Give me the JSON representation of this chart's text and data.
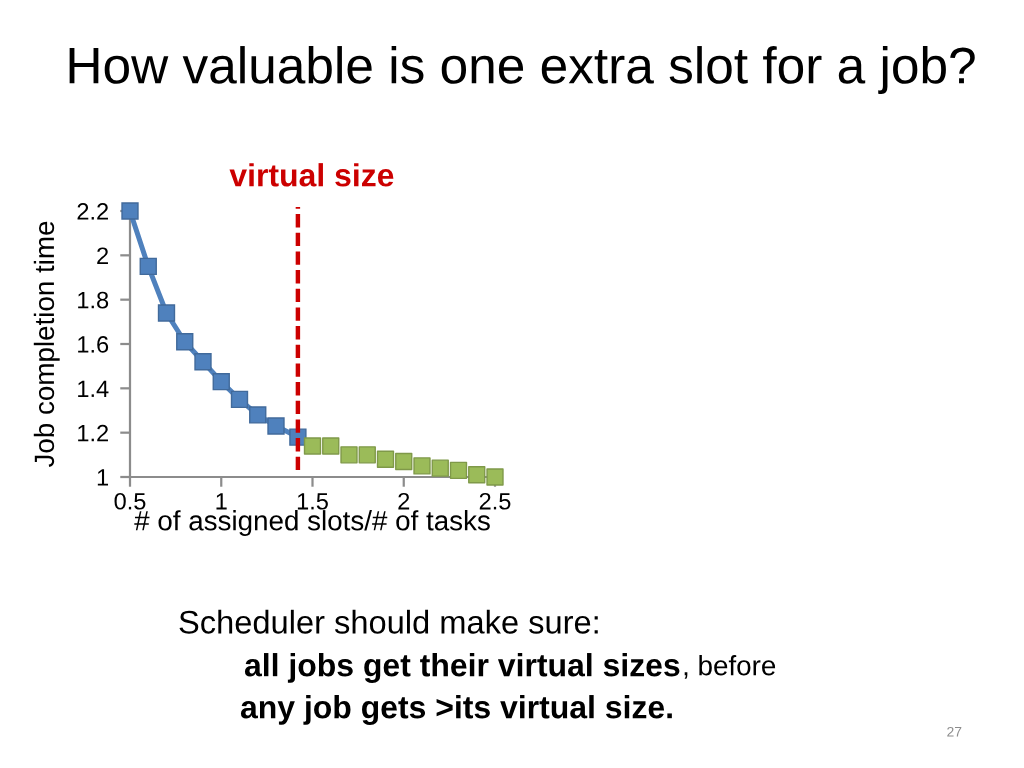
{
  "chart_data": {
    "type": "line",
    "title": "How valuable is one extra slot for a job?",
    "xlabel": "# of assigned slots/# of tasks",
    "ylabel": "Job completion time",
    "series": [
      {
        "color": "#4f81bd",
        "x": [
          0.5,
          0.6,
          0.7,
          0.8,
          0.9,
          1.0,
          1.1,
          1.2,
          1.3,
          1.42
        ],
        "values": [
          2.2,
          1.95,
          1.74,
          1.61,
          1.52,
          1.43,
          1.35,
          1.28,
          1.23,
          1.18
        ]
      },
      {
        "type": "scatter",
        "color": "#9bbb59",
        "x": [
          1.5,
          1.6,
          1.7,
          1.8,
          1.9,
          2.0,
          2.1,
          2.2,
          2.3,
          2.4,
          2.5
        ],
        "values": [
          1.14,
          1.14,
          1.1,
          1.1,
          1.08,
          1.07,
          1.05,
          1.04,
          1.03,
          1.01,
          1.0
        ]
      }
    ],
    "xlim": [
      0.5,
      2.5
    ],
    "xticks": [
      0.5,
      1,
      1.5,
      2,
      2.5
    ],
    "ylim": [
      1,
      2.2
    ],
    "yticks": [
      1,
      1.2,
      1.4,
      1.6,
      1.8,
      2,
      2.2
    ],
    "marker": "square",
    "line_style": "solid",
    "grid": false,
    "ref_lines": [
      {
        "axis": "x",
        "value": 1.42,
        "label": "virtual size",
        "color": "#cc0000",
        "line_style": "dashed"
      }
    ],
    "annotations": [
      "Scheduler should make sure:",
      "all jobs get their virtual sizes",
      ", before",
      "any job gets >its virtual size.",
      "27"
    ]
  }
}
